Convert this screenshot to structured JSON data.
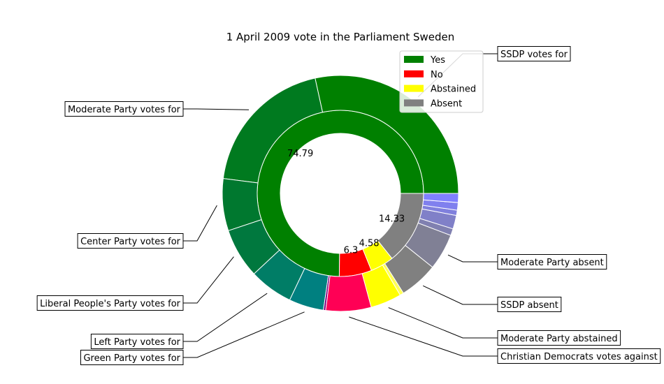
{
  "chart_data": {
    "type": "pie",
    "title": "1 April 2009 vote in the Parliament Sweden",
    "legend": {
      "placement": "top-right",
      "entries": [
        {
          "label": "Yes",
          "color": "#008000"
        },
        {
          "label": "No",
          "color": "#ff0000"
        },
        {
          "label": "Abstained",
          "color": "#ffff00"
        },
        {
          "label": "Absent",
          "color": "#808080"
        }
      ]
    },
    "inner_ring": [
      {
        "category": "Yes",
        "value": 74.79,
        "label": "74.79",
        "color": "#008000"
      },
      {
        "category": "No",
        "value": 6.3,
        "label": "6.3",
        "color": "#ff0000"
      },
      {
        "category": "Abstained",
        "value": 4.58,
        "label": "4.58",
        "color": "#ffff00"
      },
      {
        "category": "Absent",
        "value": 14.33,
        "label": "14.33",
        "color": "#808080"
      }
    ],
    "outer_ring": [
      {
        "label": "SSDP votes for",
        "value": 27.5,
        "color": "#008000"
      },
      {
        "label": "Moderate Party votes for",
        "value": 18.9,
        "color": "#007a1f"
      },
      {
        "label": "Center Party votes for",
        "value": 6.9,
        "color": "#00782f"
      },
      {
        "label": "Liberal People's Party votes for",
        "value": 6.6,
        "color": "#00783e"
      },
      {
        "label": "Left Party votes for",
        "value": 5.8,
        "color": "#007d66"
      },
      {
        "label": "Green Party votes for",
        "value": 4.6,
        "color": "#008080"
      },
      {
        "label": "",
        "value": 0.3,
        "color": "#7f007f"
      },
      {
        "label": "Christian Democrats votes against",
        "value": 6.0,
        "color": "#ff0055"
      },
      {
        "label": "Moderate Party abstained",
        "value": 4.1,
        "color": "#ffff00"
      },
      {
        "label": "",
        "value": 0.5,
        "color": "#ffff55"
      },
      {
        "label": "SSDP absent",
        "value": 5.1,
        "color": "#808080"
      },
      {
        "label": "Moderate Party absent",
        "value": 4.8,
        "color": "#808095"
      },
      {
        "label": "",
        "value": 0.9,
        "color": "#8080b0"
      },
      {
        "label": "",
        "value": 1.8,
        "color": "#8080c8"
      },
      {
        "label": "",
        "value": 0.7,
        "color": "#8080dd"
      },
      {
        "label": "",
        "value": 1.0,
        "color": "#8080ee"
      },
      {
        "label": "",
        "value": 1.2,
        "color": "#8080ff"
      }
    ]
  }
}
